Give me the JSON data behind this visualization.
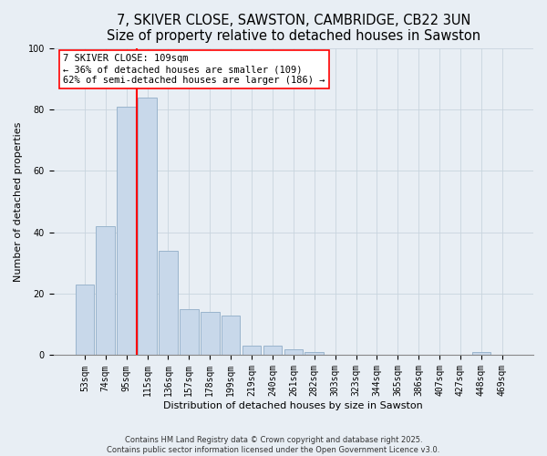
{
  "title": "7, SKIVER CLOSE, SAWSTON, CAMBRIDGE, CB22 3UN",
  "subtitle": "Size of property relative to detached houses in Sawston",
  "xlabel": "Distribution of detached houses by size in Sawston",
  "ylabel": "Number of detached properties",
  "bar_labels": [
    "53sqm",
    "74sqm",
    "95sqm",
    "115sqm",
    "136sqm",
    "157sqm",
    "178sqm",
    "199sqm",
    "219sqm",
    "240sqm",
    "261sqm",
    "282sqm",
    "303sqm",
    "323sqm",
    "344sqm",
    "365sqm",
    "386sqm",
    "407sqm",
    "427sqm",
    "448sqm",
    "469sqm"
  ],
  "bar_values": [
    23,
    42,
    81,
    84,
    34,
    15,
    14,
    13,
    3,
    3,
    2,
    1,
    0,
    0,
    0,
    0,
    0,
    0,
    0,
    1,
    0
  ],
  "bar_color": "#c8d8ea",
  "bar_edge_color": "#9ab4cc",
  "vline_color": "red",
  "vline_index": 3,
  "ylim": [
    0,
    100
  ],
  "yticks": [
    0,
    20,
    40,
    60,
    80,
    100
  ],
  "annotation_line1": "7 SKIVER CLOSE: 109sqm",
  "annotation_line2": "← 36% of detached houses are smaller (109)",
  "annotation_line3": "62% of semi-detached houses are larger (186) →",
  "footer_line1": "Contains HM Land Registry data © Crown copyright and database right 2025.",
  "footer_line2": "Contains public sector information licensed under the Open Government Licence v3.0.",
  "bg_color": "#e8eef4",
  "title_fontsize": 10.5,
  "subtitle_fontsize": 9,
  "axis_label_fontsize": 8,
  "tick_fontsize": 7,
  "annotation_fontsize": 7.5,
  "footer_fontsize": 6
}
